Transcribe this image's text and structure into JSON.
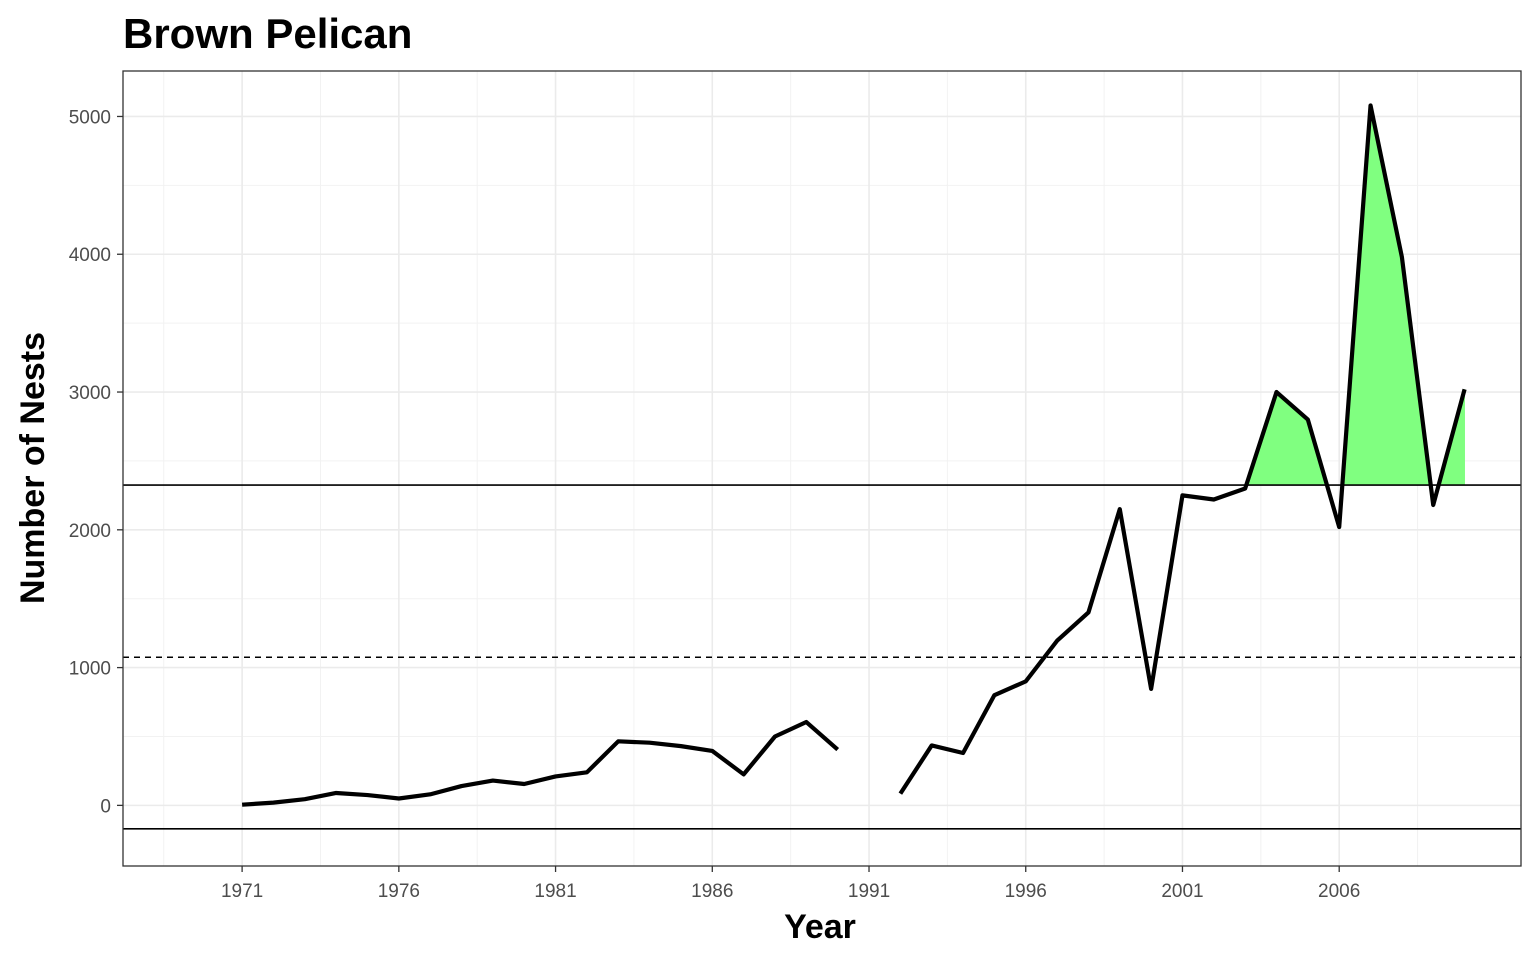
{
  "chart_data": {
    "type": "line",
    "title": "Brown Pelican",
    "xlabel": "Year",
    "ylabel": "Number of Nests",
    "xlim": [
      1967.2,
      2011.8
    ],
    "ylim": [
      -440,
      5330
    ],
    "x_ticks": [
      1971,
      1976,
      1981,
      1986,
      1991,
      1996,
      2001,
      2006
    ],
    "y_ticks": [
      0,
      1000,
      2000,
      3000,
      4000,
      5000
    ],
    "grid": true,
    "legend": "none",
    "series": [
      {
        "x": [
          1971,
          1972,
          1973,
          1974,
          1975,
          1976,
          1977,
          1978,
          1979,
          1980,
          1981,
          1982,
          1983,
          1984,
          1985,
          1986,
          1987,
          1988,
          1989,
          1990,
          1991,
          1992,
          1993,
          1994,
          1995,
          1996,
          1997,
          1998,
          1999,
          2000,
          2001,
          2002,
          2003,
          2004,
          2005,
          2006,
          2007,
          2008,
          2009,
          2010
        ],
        "values": [
          5,
          20,
          45,
          90,
          75,
          50,
          80,
          140,
          180,
          155,
          210,
          240,
          465,
          455,
          430,
          395,
          225,
          500,
          605,
          405,
          null,
          85,
          435,
          380,
          800,
          900,
          1195,
          1400,
          2150,
          845,
          2250,
          2220,
          2300,
          3000,
          2800,
          2020,
          5080,
          3980,
          2180,
          3020
        ],
        "color": "#000000"
      }
    ],
    "reference_lines": [
      {
        "y": 2325,
        "style": "solid",
        "color": "#000000"
      },
      {
        "y": 1075,
        "style": "dashed",
        "color": "#000000"
      },
      {
        "y": -170,
        "style": "solid",
        "color": "#000000"
      }
    ],
    "fill_above": {
      "threshold": 2325,
      "color": "#80FF80"
    }
  }
}
